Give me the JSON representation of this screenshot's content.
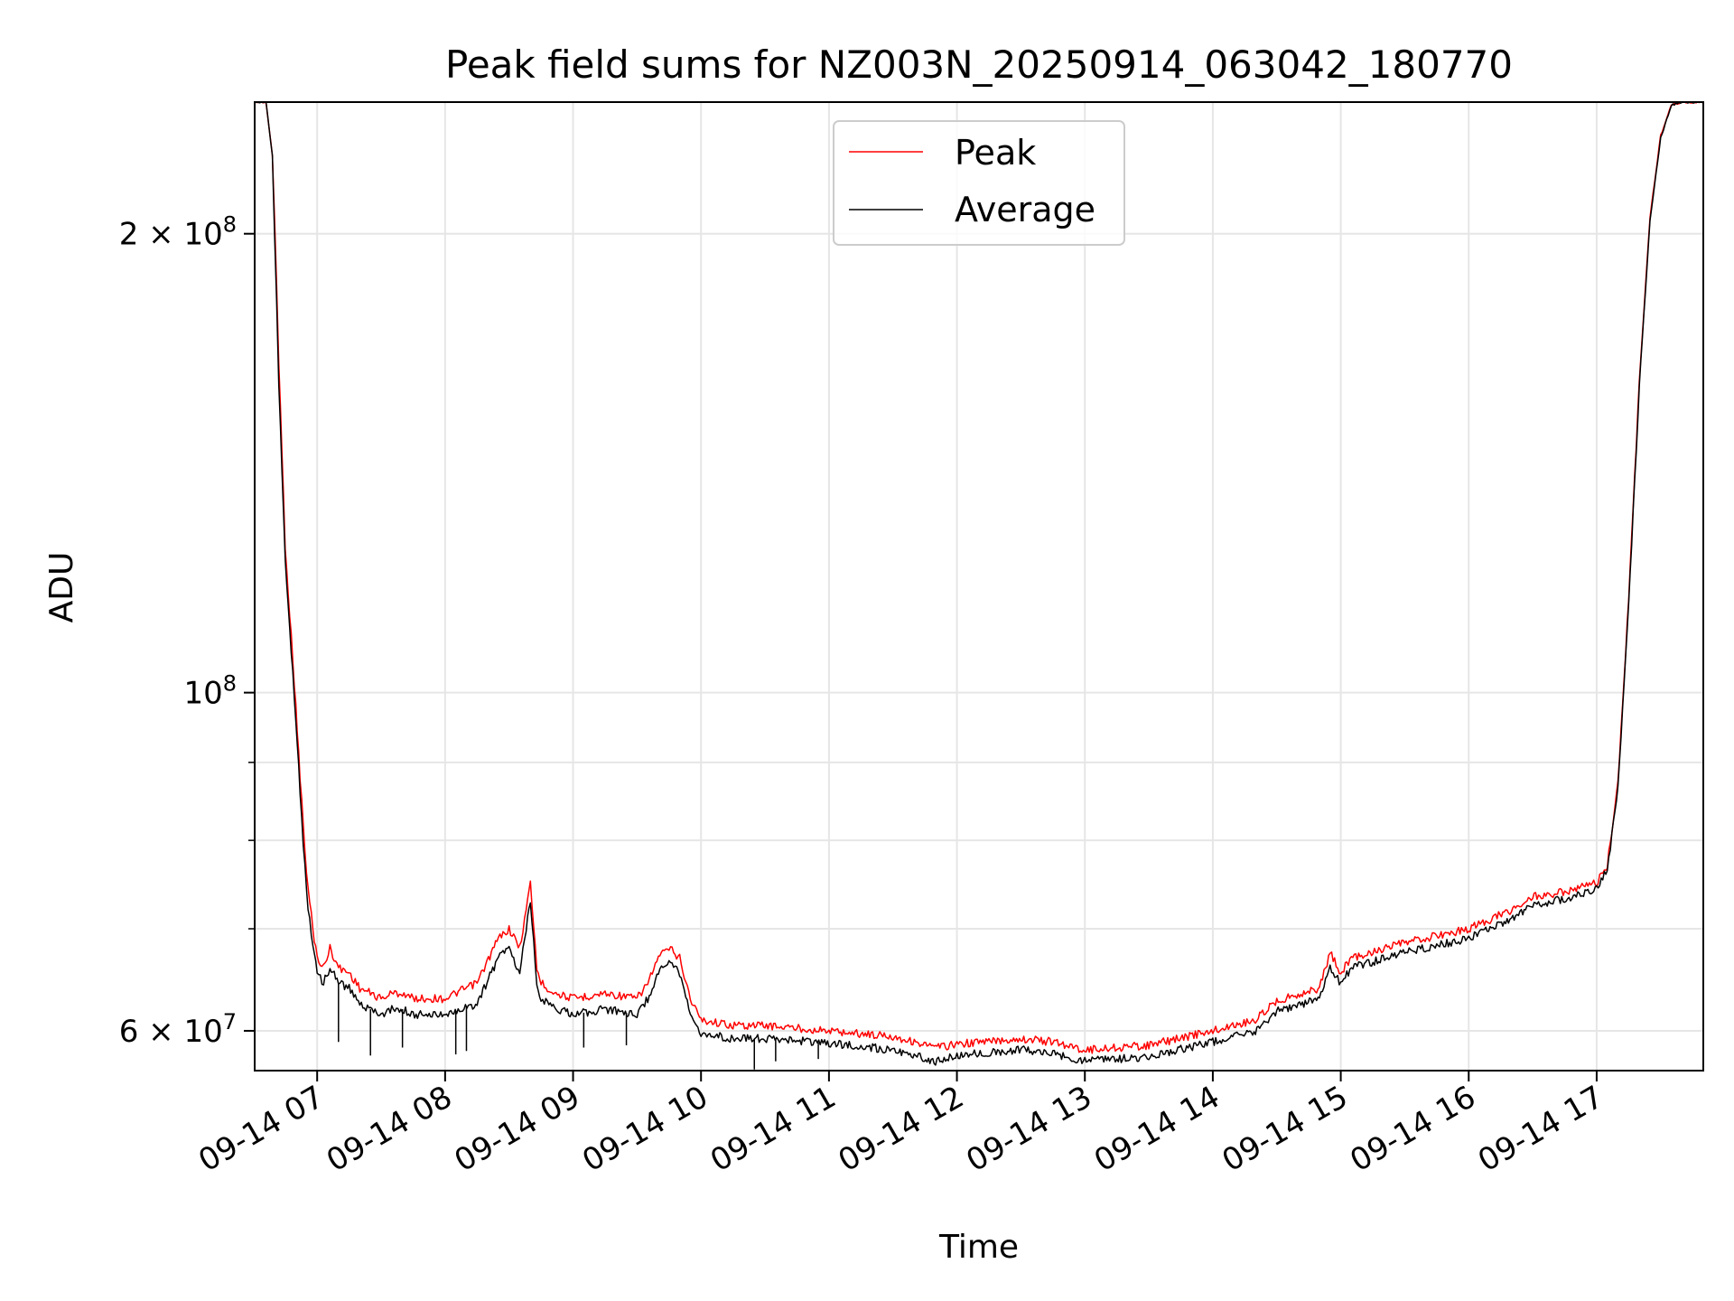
{
  "chart_data": {
    "type": "line",
    "title": "Peak field sums for NZ003N_20250914_063042_180770",
    "xlabel": "Time",
    "ylabel": "ADU",
    "yscale": "log",
    "ylim": [
      56500000,
      244000000
    ],
    "xlim": [
      "2025-09-14T06:30:42",
      "2025-09-14T17:50:00"
    ],
    "grid": true,
    "legend_position": "upper center",
    "x_ticks": [
      {
        "value": "2025-09-14T07:00:00",
        "label": "09-14 07"
      },
      {
        "value": "2025-09-14T08:00:00",
        "label": "09-14 08"
      },
      {
        "value": "2025-09-14T09:00:00",
        "label": "09-14 09"
      },
      {
        "value": "2025-09-14T10:00:00",
        "label": "09-14 10"
      },
      {
        "value": "2025-09-14T11:00:00",
        "label": "09-14 11"
      },
      {
        "value": "2025-09-14T12:00:00",
        "label": "09-14 12"
      },
      {
        "value": "2025-09-14T13:00:00",
        "label": "09-14 13"
      },
      {
        "value": "2025-09-14T14:00:00",
        "label": "09-14 14"
      },
      {
        "value": "2025-09-14T15:00:00",
        "label": "09-14 15"
      },
      {
        "value": "2025-09-14T16:00:00",
        "label": "09-14 16"
      },
      {
        "value": "2025-09-14T17:00:00",
        "label": "09-14 17"
      }
    ],
    "y_ticks_major": [
      {
        "value": 60000000,
        "base": "6",
        "mid": " × 10",
        "exp": "7"
      },
      {
        "value": 100000000,
        "base": "",
        "mid": "10",
        "exp": "8"
      },
      {
        "value": 200000000,
        "base": "2",
        "mid": " × 10",
        "exp": "8"
      }
    ],
    "y_ticks_minor": [
      70000000,
      80000000,
      90000000
    ],
    "series": [
      {
        "name": "Peak",
        "color": "#ff0000",
        "x": [
          "2025-09-14T06:31:00",
          "2025-09-14T06:36:00",
          "2025-09-14T06:39:00",
          "2025-09-14T06:40:00",
          "2025-09-14T06:41:00",
          "2025-09-14T06:42:00",
          "2025-09-14T06:45:00",
          "2025-09-14T06:50:00",
          "2025-09-14T06:52:00",
          "2025-09-14T06:55:00",
          "2025-09-14T06:58:00",
          "2025-09-14T07:00:00",
          "2025-09-14T07:03:00",
          "2025-09-14T07:06:00",
          "2025-09-14T07:10:00",
          "2025-09-14T07:15:00",
          "2025-09-14T07:20:00",
          "2025-09-14T07:25:00",
          "2025-09-14T07:30:00",
          "2025-09-14T07:35:00",
          "2025-09-14T07:40:00",
          "2025-09-14T07:45:00",
          "2025-09-14T08:00:00",
          "2025-09-14T08:15:00",
          "2025-09-14T08:25:00",
          "2025-09-14T08:30:00",
          "2025-09-14T08:35:00",
          "2025-09-14T08:38:00",
          "2025-09-14T08:40:00",
          "2025-09-14T08:43:00",
          "2025-09-14T08:45:00",
          "2025-09-14T08:48:00",
          "2025-09-14T08:52:00",
          "2025-09-14T09:00:00",
          "2025-09-14T09:15:00",
          "2025-09-14T09:30:00",
          "2025-09-14T09:35:00",
          "2025-09-14T09:40:00",
          "2025-09-14T09:45:00",
          "2025-09-14T09:50:00",
          "2025-09-14T09:55:00",
          "2025-09-14T10:00:00",
          "2025-09-14T10:15:00",
          "2025-09-14T10:30:00",
          "2025-09-14T11:00:00",
          "2025-09-14T11:30:00",
          "2025-09-14T11:50:00",
          "2025-09-14T12:00:00",
          "2025-09-14T12:30:00",
          "2025-09-14T12:45:00",
          "2025-09-14T13:00:00",
          "2025-09-14T13:30:00",
          "2025-09-14T14:00:00",
          "2025-09-14T14:20:00",
          "2025-09-14T14:30:00",
          "2025-09-14T14:50:00",
          "2025-09-14T14:55:00",
          "2025-09-14T15:00:00",
          "2025-09-14T15:05:00",
          "2025-09-14T15:30:00",
          "2025-09-14T16:00:00",
          "2025-09-14T16:20:00",
          "2025-09-14T16:30:00",
          "2025-09-14T16:45:00",
          "2025-09-14T17:00:00",
          "2025-09-14T17:05:00",
          "2025-09-14T17:10:00",
          "2025-09-14T17:15:00",
          "2025-09-14T17:20:00",
          "2025-09-14T17:25:00",
          "2025-09-14T17:30:00",
          "2025-09-14T17:35:00",
          "2025-09-14T17:40:00",
          "2025-09-14T17:50:00"
        ],
        "y": [
          244000000,
          244000000,
          225000000,
          205000000,
          185000000,
          165000000,
          125000000,
          98000000,
          88000000,
          76000000,
          70000000,
          67000000,
          66000000,
          68000000,
          66000000,
          65500000,
          64000000,
          63500000,
          63000000,
          63500000,
          63500000,
          63000000,
          63000000,
          64500000,
          69000000,
          70000000,
          68000000,
          72000000,
          75000000,
          66000000,
          64500000,
          64000000,
          63500000,
          63000000,
          63500000,
          63000000,
          64500000,
          67000000,
          68000000,
          67000000,
          63000000,
          61000000,
          60500000,
          60500000,
          60000000,
          59500000,
          58500000,
          58800000,
          59300000,
          59000000,
          58300000,
          58700000,
          60000000,
          61000000,
          62800000,
          64000000,
          67500000,
          65500000,
          67000000,
          68500000,
          70000000,
          72000000,
          73500000,
          74000000,
          75000000,
          77000000,
          87000000,
          115000000,
          160000000,
          205000000,
          232000000,
          243000000,
          244000000,
          244000000
        ]
      },
      {
        "name": "Average",
        "color": "#000000",
        "x": [
          "2025-09-14T06:31:00",
          "2025-09-14T06:36:00",
          "2025-09-14T06:39:00",
          "2025-09-14T06:40:00",
          "2025-09-14T06:41:00",
          "2025-09-14T06:42:00",
          "2025-09-14T06:45:00",
          "2025-09-14T06:50:00",
          "2025-09-14T06:52:00",
          "2025-09-14T06:55:00",
          "2025-09-14T06:58:00",
          "2025-09-14T07:00:00",
          "2025-09-14T07:03:00",
          "2025-09-14T07:06:00",
          "2025-09-14T07:10:00",
          "2025-09-14T07:15:00",
          "2025-09-14T07:20:00",
          "2025-09-14T07:25:00",
          "2025-09-14T07:30:00",
          "2025-09-14T07:35:00",
          "2025-09-14T07:40:00",
          "2025-09-14T07:45:00",
          "2025-09-14T08:00:00",
          "2025-09-14T08:15:00",
          "2025-09-14T08:25:00",
          "2025-09-14T08:30:00",
          "2025-09-14T08:35:00",
          "2025-09-14T08:38:00",
          "2025-09-14T08:40:00",
          "2025-09-14T08:43:00",
          "2025-09-14T08:45:00",
          "2025-09-14T08:48:00",
          "2025-09-14T08:52:00",
          "2025-09-14T09:00:00",
          "2025-09-14T09:15:00",
          "2025-09-14T09:30:00",
          "2025-09-14T09:35:00",
          "2025-09-14T09:40:00",
          "2025-09-14T09:45:00",
          "2025-09-14T09:50:00",
          "2025-09-14T09:55:00",
          "2025-09-14T10:00:00",
          "2025-09-14T10:15:00",
          "2025-09-14T10:30:00",
          "2025-09-14T11:00:00",
          "2025-09-14T11:30:00",
          "2025-09-14T11:50:00",
          "2025-09-14T12:00:00",
          "2025-09-14T12:30:00",
          "2025-09-14T12:45:00",
          "2025-09-14T13:00:00",
          "2025-09-14T13:30:00",
          "2025-09-14T14:00:00",
          "2025-09-14T14:20:00",
          "2025-09-14T14:30:00",
          "2025-09-14T14:50:00",
          "2025-09-14T14:55:00",
          "2025-09-14T15:00:00",
          "2025-09-14T15:05:00",
          "2025-09-14T15:30:00",
          "2025-09-14T16:00:00",
          "2025-09-14T16:20:00",
          "2025-09-14T16:30:00",
          "2025-09-14T16:45:00",
          "2025-09-14T17:00:00",
          "2025-09-14T17:05:00",
          "2025-09-14T17:10:00",
          "2025-09-14T17:15:00",
          "2025-09-14T17:20:00",
          "2025-09-14T17:25:00",
          "2025-09-14T17:30:00",
          "2025-09-14T17:35:00",
          "2025-09-14T17:40:00",
          "2025-09-14T17:50:00"
        ],
        "y": [
          244000000,
          244000000,
          225000000,
          200000000,
          180000000,
          160000000,
          122000000,
          96000000,
          86000000,
          74000000,
          68000000,
          65500000,
          64500000,
          66000000,
          64500000,
          64000000,
          62500000,
          62000000,
          61500000,
          62000000,
          62000000,
          61500000,
          61500000,
          62500000,
          67000000,
          68000000,
          65500000,
          70000000,
          73000000,
          64500000,
          63000000,
          62500000,
          62000000,
          61500000,
          62000000,
          61500000,
          63000000,
          65500000,
          66500000,
          65500000,
          61500000,
          59800000,
          59300000,
          59300000,
          58900000,
          58300000,
          57300000,
          57800000,
          58300000,
          58000000,
          57300000,
          57700000,
          59000000,
          60000000,
          61800000,
          63000000,
          66000000,
          64500000,
          66000000,
          67500000,
          69000000,
          71000000,
          72500000,
          73200000,
          74300000,
          76500000,
          86500000,
          114000000,
          159000000,
          204000000,
          231000000,
          243000000,
          244000000,
          244000000
        ]
      }
    ],
    "dips": [
      {
        "x": "2025-09-14T07:10:00",
        "y": 59000000
      },
      {
        "x": "2025-09-14T07:25:00",
        "y": 57800000
      },
      {
        "x": "2025-09-14T07:40:00",
        "y": 58500000
      },
      {
        "x": "2025-09-14T08:05:00",
        "y": 57900000
      },
      {
        "x": "2025-09-14T08:10:00",
        "y": 58200000
      },
      {
        "x": "2025-09-14T09:05:00",
        "y": 58500000
      },
      {
        "x": "2025-09-14T09:25:00",
        "y": 58700000
      },
      {
        "x": "2025-09-14T10:25:00",
        "y": 56600000
      },
      {
        "x": "2025-09-14T10:35:00",
        "y": 57300000
      },
      {
        "x": "2025-09-14T10:55:00",
        "y": 57500000
      }
    ]
  }
}
